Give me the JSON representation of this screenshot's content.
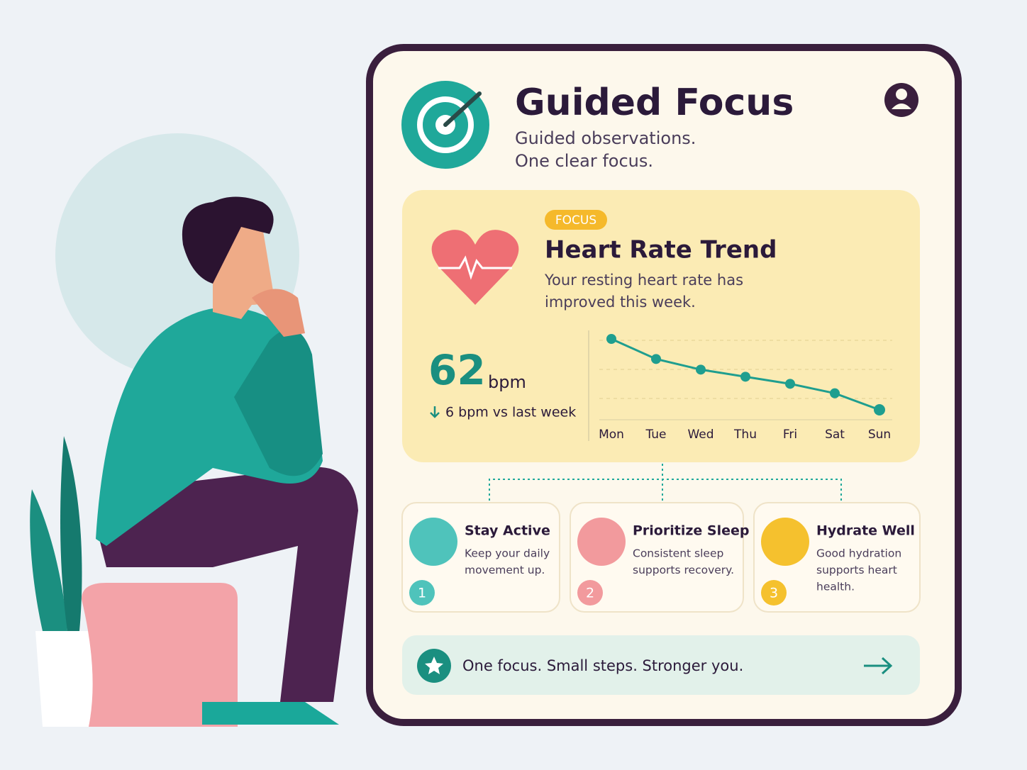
{
  "header": {
    "title": "Guided Focus",
    "subtitle_lines": [
      "Guided observations.",
      "One clear focus."
    ]
  },
  "focus_card": {
    "badge": "FOCUS",
    "title": "Heart Rate Trend",
    "description_lines": [
      "Your resting heart rate has",
      "improved this week."
    ],
    "metric": {
      "value": 62,
      "unit": "bpm",
      "change": "6 bpm vs last week"
    }
  },
  "chart_data": {
    "type": "line",
    "categories": [
      "Mon",
      "Tue",
      "Wed",
      "Thu",
      "Fri",
      "Sat",
      "Sun"
    ],
    "values": [
      68,
      66.3,
      65.4,
      64.8,
      64.2,
      63.4,
      62
    ],
    "color": "#1f9e8f"
  },
  "steps": [
    {
      "number": 1,
      "title": "Stay Active",
      "lines": [
        "Keep your daily",
        "movement up."
      ]
    },
    {
      "number": 2,
      "title": "Prioritize Sleep",
      "lines": [
        "Consistent sleep",
        "supports recovery."
      ]
    },
    {
      "number": 3,
      "title": "Hydrate Well",
      "lines": [
        "Good hydration",
        "supports heart",
        "health."
      ]
    }
  ],
  "footer": {
    "text": "One focus. Small steps. Stronger you."
  }
}
